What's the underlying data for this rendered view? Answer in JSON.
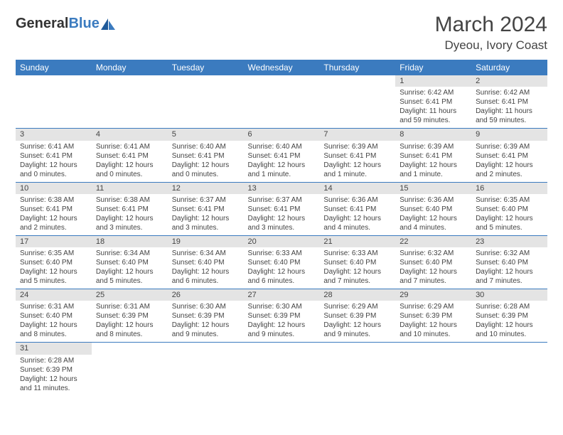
{
  "logo": {
    "text1": "General",
    "text2": "Blue"
  },
  "title": "March 2024",
  "location": "Dyeou, Ivory Coast",
  "dayHeaders": [
    "Sunday",
    "Monday",
    "Tuesday",
    "Wednesday",
    "Thursday",
    "Friday",
    "Saturday"
  ],
  "colors": {
    "headerBg": "#3b7bbf",
    "headerText": "#ffffff",
    "dayNumBg": "#e4e4e4",
    "cellBorder": "#3b7bbf",
    "bodyText": "#444444"
  },
  "typography": {
    "titleSize": 30,
    "locationSize": 17,
    "headerSize": 12,
    "dayNumSize": 11,
    "cellSize": 10
  },
  "weeks": [
    [
      null,
      null,
      null,
      null,
      null,
      {
        "n": "1",
        "sr": "6:42 AM",
        "ss": "6:41 PM",
        "dl": "11 hours and 59 minutes."
      },
      {
        "n": "2",
        "sr": "6:42 AM",
        "ss": "6:41 PM",
        "dl": "11 hours and 59 minutes."
      }
    ],
    [
      {
        "n": "3",
        "sr": "6:41 AM",
        "ss": "6:41 PM",
        "dl": "12 hours and 0 minutes."
      },
      {
        "n": "4",
        "sr": "6:41 AM",
        "ss": "6:41 PM",
        "dl": "12 hours and 0 minutes."
      },
      {
        "n": "5",
        "sr": "6:40 AM",
        "ss": "6:41 PM",
        "dl": "12 hours and 0 minutes."
      },
      {
        "n": "6",
        "sr": "6:40 AM",
        "ss": "6:41 PM",
        "dl": "12 hours and 1 minute."
      },
      {
        "n": "7",
        "sr": "6:39 AM",
        "ss": "6:41 PM",
        "dl": "12 hours and 1 minute."
      },
      {
        "n": "8",
        "sr": "6:39 AM",
        "ss": "6:41 PM",
        "dl": "12 hours and 1 minute."
      },
      {
        "n": "9",
        "sr": "6:39 AM",
        "ss": "6:41 PM",
        "dl": "12 hours and 2 minutes."
      }
    ],
    [
      {
        "n": "10",
        "sr": "6:38 AM",
        "ss": "6:41 PM",
        "dl": "12 hours and 2 minutes."
      },
      {
        "n": "11",
        "sr": "6:38 AM",
        "ss": "6:41 PM",
        "dl": "12 hours and 3 minutes."
      },
      {
        "n": "12",
        "sr": "6:37 AM",
        "ss": "6:41 PM",
        "dl": "12 hours and 3 minutes."
      },
      {
        "n": "13",
        "sr": "6:37 AM",
        "ss": "6:41 PM",
        "dl": "12 hours and 3 minutes."
      },
      {
        "n": "14",
        "sr": "6:36 AM",
        "ss": "6:41 PM",
        "dl": "12 hours and 4 minutes."
      },
      {
        "n": "15",
        "sr": "6:36 AM",
        "ss": "6:40 PM",
        "dl": "12 hours and 4 minutes."
      },
      {
        "n": "16",
        "sr": "6:35 AM",
        "ss": "6:40 PM",
        "dl": "12 hours and 5 minutes."
      }
    ],
    [
      {
        "n": "17",
        "sr": "6:35 AM",
        "ss": "6:40 PM",
        "dl": "12 hours and 5 minutes."
      },
      {
        "n": "18",
        "sr": "6:34 AM",
        "ss": "6:40 PM",
        "dl": "12 hours and 5 minutes."
      },
      {
        "n": "19",
        "sr": "6:34 AM",
        "ss": "6:40 PM",
        "dl": "12 hours and 6 minutes."
      },
      {
        "n": "20",
        "sr": "6:33 AM",
        "ss": "6:40 PM",
        "dl": "12 hours and 6 minutes."
      },
      {
        "n": "21",
        "sr": "6:33 AM",
        "ss": "6:40 PM",
        "dl": "12 hours and 7 minutes."
      },
      {
        "n": "22",
        "sr": "6:32 AM",
        "ss": "6:40 PM",
        "dl": "12 hours and 7 minutes."
      },
      {
        "n": "23",
        "sr": "6:32 AM",
        "ss": "6:40 PM",
        "dl": "12 hours and 7 minutes."
      }
    ],
    [
      {
        "n": "24",
        "sr": "6:31 AM",
        "ss": "6:40 PM",
        "dl": "12 hours and 8 minutes."
      },
      {
        "n": "25",
        "sr": "6:31 AM",
        "ss": "6:39 PM",
        "dl": "12 hours and 8 minutes."
      },
      {
        "n": "26",
        "sr": "6:30 AM",
        "ss": "6:39 PM",
        "dl": "12 hours and 9 minutes."
      },
      {
        "n": "27",
        "sr": "6:30 AM",
        "ss": "6:39 PM",
        "dl": "12 hours and 9 minutes."
      },
      {
        "n": "28",
        "sr": "6:29 AM",
        "ss": "6:39 PM",
        "dl": "12 hours and 9 minutes."
      },
      {
        "n": "29",
        "sr": "6:29 AM",
        "ss": "6:39 PM",
        "dl": "12 hours and 10 minutes."
      },
      {
        "n": "30",
        "sr": "6:28 AM",
        "ss": "6:39 PM",
        "dl": "12 hours and 10 minutes."
      }
    ],
    [
      {
        "n": "31",
        "sr": "6:28 AM",
        "ss": "6:39 PM",
        "dl": "12 hours and 11 minutes."
      },
      null,
      null,
      null,
      null,
      null,
      null
    ]
  ],
  "labels": {
    "sunrise": "Sunrise: ",
    "sunset": "Sunset: ",
    "daylight": "Daylight: "
  }
}
